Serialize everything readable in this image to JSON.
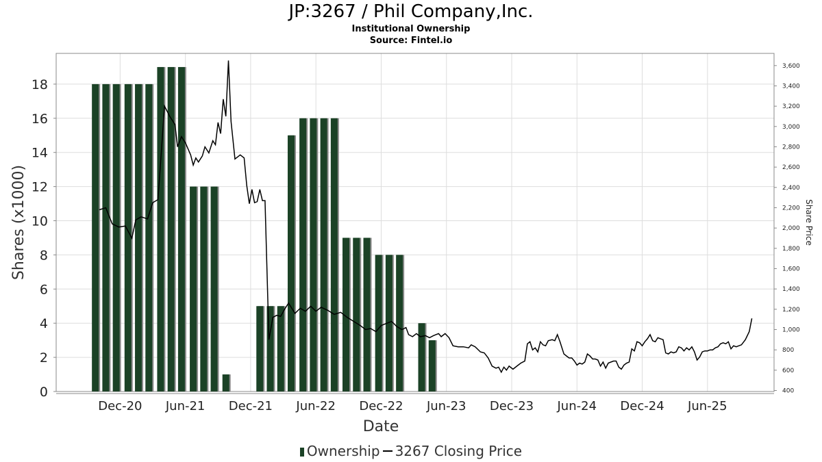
{
  "header": {
    "title": "JP:3267 / Phil Company,Inc.",
    "subtitle": "Institutional Ownership",
    "source": "Source: Fintel.io"
  },
  "legend": {
    "ownership": "Ownership",
    "price": "3267 Closing Price"
  },
  "colors": {
    "bar": "#1b4226",
    "bar_shadow": "#8a8a8a",
    "line": "#000000",
    "grid": "#dddddd",
    "frame": "#888888"
  },
  "chart_data": {
    "type": "bar",
    "title": "JP:3267 / Phil Company,Inc.",
    "subtitle": "Institutional Ownership",
    "xlabel": "Date",
    "ylabel": "Shares (x1000)",
    "y2label": "Share Price",
    "x_ticks": [
      "Dec-20",
      "Jun-21",
      "Dec-21",
      "Jun-22",
      "Dec-22",
      "Jun-23",
      "Dec-23",
      "Jun-24",
      "Dec-24",
      "Jun-25"
    ],
    "x_range": [
      2020.47,
      2025.97
    ],
    "ylim": [
      0,
      19.8
    ],
    "y_ticks": [
      0,
      2,
      4,
      6,
      8,
      10,
      12,
      14,
      16,
      18
    ],
    "y2lim": [
      390,
      3720
    ],
    "y2_ticks": [
      400,
      600,
      800,
      1000,
      1200,
      1400,
      1600,
      1800,
      2000,
      2200,
      2400,
      2600,
      2800,
      3000,
      3200,
      3400,
      3600
    ],
    "grid": true,
    "legend_position": "bottom",
    "series": [
      {
        "name": "Ownership",
        "kind": "bar",
        "axis": "left",
        "points": [
          {
            "x": 2020.77,
            "y": 18
          },
          {
            "x": 2020.85,
            "y": 18
          },
          {
            "x": 2020.93,
            "y": 18
          },
          {
            "x": 2021.02,
            "y": 18
          },
          {
            "x": 2021.1,
            "y": 18
          },
          {
            "x": 2021.18,
            "y": 18
          },
          {
            "x": 2021.27,
            "y": 19
          },
          {
            "x": 2021.35,
            "y": 19
          },
          {
            "x": 2021.43,
            "y": 19
          },
          {
            "x": 2021.52,
            "y": 12
          },
          {
            "x": 2021.6,
            "y": 12
          },
          {
            "x": 2021.68,
            "y": 12
          },
          {
            "x": 2021.77,
            "y": 1
          },
          {
            "x": 2022.03,
            "y": 5
          },
          {
            "x": 2022.11,
            "y": 5
          },
          {
            "x": 2022.19,
            "y": 5
          },
          {
            "x": 2022.27,
            "y": 15
          },
          {
            "x": 2022.36,
            "y": 16
          },
          {
            "x": 2022.44,
            "y": 16
          },
          {
            "x": 2022.52,
            "y": 16
          },
          {
            "x": 2022.6,
            "y": 16
          },
          {
            "x": 2022.69,
            "y": 9
          },
          {
            "x": 2022.77,
            "y": 9
          },
          {
            "x": 2022.85,
            "y": 9
          },
          {
            "x": 2022.94,
            "y": 8
          },
          {
            "x": 2023.02,
            "y": 8
          },
          {
            "x": 2023.1,
            "y": 8
          },
          {
            "x": 2023.27,
            "y": 4
          },
          {
            "x": 2023.35,
            "y": 3
          }
        ]
      },
      {
        "name": "3267 Closing Price",
        "kind": "line",
        "axis": "right",
        "points": [
          {
            "x": 2020.8,
            "y": 2180
          },
          {
            "x": 2020.85,
            "y": 2200
          },
          {
            "x": 2020.9,
            "y": 2040
          },
          {
            "x": 2020.95,
            "y": 2010
          },
          {
            "x": 2021.0,
            "y": 2020
          },
          {
            "x": 2021.05,
            "y": 1900
          },
          {
            "x": 2021.08,
            "y": 2080
          },
          {
            "x": 2021.12,
            "y": 2110
          },
          {
            "x": 2021.17,
            "y": 2090
          },
          {
            "x": 2021.21,
            "y": 2250
          },
          {
            "x": 2021.25,
            "y": 2280
          },
          {
            "x": 2021.3,
            "y": 3200
          },
          {
            "x": 2021.34,
            "y": 3100
          },
          {
            "x": 2021.38,
            "y": 3020
          },
          {
            "x": 2021.4,
            "y": 2800
          },
          {
            "x": 2021.43,
            "y": 2900
          },
          {
            "x": 2021.46,
            "y": 2840
          },
          {
            "x": 2021.5,
            "y": 2720
          },
          {
            "x": 2021.52,
            "y": 2620
          },
          {
            "x": 2021.54,
            "y": 2690
          },
          {
            "x": 2021.56,
            "y": 2650
          },
          {
            "x": 2021.59,
            "y": 2710
          },
          {
            "x": 2021.61,
            "y": 2800
          },
          {
            "x": 2021.64,
            "y": 2740
          },
          {
            "x": 2021.67,
            "y": 2860
          },
          {
            "x": 2021.69,
            "y": 2820
          },
          {
            "x": 2021.71,
            "y": 3040
          },
          {
            "x": 2021.73,
            "y": 2930
          },
          {
            "x": 2021.75,
            "y": 3270
          },
          {
            "x": 2021.77,
            "y": 3100
          },
          {
            "x": 2021.79,
            "y": 3650
          },
          {
            "x": 2021.81,
            "y": 3050
          },
          {
            "x": 2021.84,
            "y": 2680
          },
          {
            "x": 2021.88,
            "y": 2720
          },
          {
            "x": 2021.91,
            "y": 2690
          },
          {
            "x": 2021.93,
            "y": 2420
          },
          {
            "x": 2021.95,
            "y": 2240
          },
          {
            "x": 2021.97,
            "y": 2380
          },
          {
            "x": 2021.99,
            "y": 2250
          },
          {
            "x": 2022.01,
            "y": 2260
          },
          {
            "x": 2022.03,
            "y": 2380
          },
          {
            "x": 2022.05,
            "y": 2270
          },
          {
            "x": 2022.07,
            "y": 2270
          },
          {
            "x": 2022.1,
            "y": 900
          },
          {
            "x": 2022.13,
            "y": 1120
          },
          {
            "x": 2022.16,
            "y": 1140
          },
          {
            "x": 2022.19,
            "y": 1130
          },
          {
            "x": 2022.22,
            "y": 1200
          },
          {
            "x": 2022.25,
            "y": 1260
          },
          {
            "x": 2022.3,
            "y": 1160
          },
          {
            "x": 2022.34,
            "y": 1210
          },
          {
            "x": 2022.38,
            "y": 1180
          },
          {
            "x": 2022.42,
            "y": 1230
          },
          {
            "x": 2022.46,
            "y": 1180
          },
          {
            "x": 2022.5,
            "y": 1220
          },
          {
            "x": 2022.55,
            "y": 1190
          },
          {
            "x": 2022.6,
            "y": 1150
          },
          {
            "x": 2022.65,
            "y": 1170
          },
          {
            "x": 2022.7,
            "y": 1120
          },
          {
            "x": 2022.75,
            "y": 1080
          },
          {
            "x": 2022.8,
            "y": 1040
          },
          {
            "x": 2022.84,
            "y": 1000
          },
          {
            "x": 2022.88,
            "y": 1010
          },
          {
            "x": 2022.92,
            "y": 980
          },
          {
            "x": 2022.96,
            "y": 1040
          },
          {
            "x": 2023.0,
            "y": 1060
          },
          {
            "x": 2023.04,
            "y": 1080
          },
          {
            "x": 2023.08,
            "y": 1030
          },
          {
            "x": 2023.12,
            "y": 1000
          },
          {
            "x": 2023.15,
            "y": 1020
          },
          {
            "x": 2023.17,
            "y": 950
          },
          {
            "x": 2023.2,
            "y": 930
          },
          {
            "x": 2023.23,
            "y": 960
          },
          {
            "x": 2023.26,
            "y": 930
          },
          {
            "x": 2023.3,
            "y": 940
          },
          {
            "x": 2023.33,
            "y": 920
          },
          {
            "x": 2023.36,
            "y": 940
          },
          {
            "x": 2023.4,
            "y": 960
          },
          {
            "x": 2023.42,
            "y": 930
          },
          {
            "x": 2023.45,
            "y": 960
          },
          {
            "x": 2023.48,
            "y": 920
          },
          {
            "x": 2023.51,
            "y": 840
          },
          {
            "x": 2023.55,
            "y": 830
          },
          {
            "x": 2023.59,
            "y": 830
          },
          {
            "x": 2023.63,
            "y": 820
          },
          {
            "x": 2023.65,
            "y": 850
          },
          {
            "x": 2023.68,
            "y": 830
          },
          {
            "x": 2023.72,
            "y": 780
          },
          {
            "x": 2023.75,
            "y": 770
          },
          {
            "x": 2023.78,
            "y": 720
          },
          {
            "x": 2023.81,
            "y": 640
          },
          {
            "x": 2023.84,
            "y": 620
          },
          {
            "x": 2023.86,
            "y": 630
          },
          {
            "x": 2023.88,
            "y": 580
          },
          {
            "x": 2023.9,
            "y": 630
          },
          {
            "x": 2023.92,
            "y": 600
          },
          {
            "x": 2023.94,
            "y": 640
          },
          {
            "x": 2023.97,
            "y": 610
          },
          {
            "x": 2024.0,
            "y": 640
          },
          {
            "x": 2024.03,
            "y": 670
          },
          {
            "x": 2024.06,
            "y": 690
          },
          {
            "x": 2024.08,
            "y": 860
          },
          {
            "x": 2024.1,
            "y": 880
          },
          {
            "x": 2024.12,
            "y": 800
          },
          {
            "x": 2024.14,
            "y": 820
          },
          {
            "x": 2024.16,
            "y": 780
          },
          {
            "x": 2024.18,
            "y": 880
          },
          {
            "x": 2024.2,
            "y": 850
          },
          {
            "x": 2024.22,
            "y": 840
          },
          {
            "x": 2024.24,
            "y": 890
          },
          {
            "x": 2024.27,
            "y": 900
          },
          {
            "x": 2024.29,
            "y": 890
          },
          {
            "x": 2024.31,
            "y": 950
          },
          {
            "x": 2024.33,
            "y": 880
          },
          {
            "x": 2024.36,
            "y": 760
          },
          {
            "x": 2024.38,
            "y": 740
          },
          {
            "x": 2024.4,
            "y": 720
          },
          {
            "x": 2024.42,
            "y": 720
          },
          {
            "x": 2024.44,
            "y": 690
          },
          {
            "x": 2024.46,
            "y": 650
          },
          {
            "x": 2024.48,
            "y": 670
          },
          {
            "x": 2024.5,
            "y": 660
          },
          {
            "x": 2024.52,
            "y": 680
          },
          {
            "x": 2024.54,
            "y": 760
          },
          {
            "x": 2024.56,
            "y": 740
          },
          {
            "x": 2024.58,
            "y": 710
          },
          {
            "x": 2024.6,
            "y": 710
          },
          {
            "x": 2024.62,
            "y": 700
          },
          {
            "x": 2024.64,
            "y": 640
          },
          {
            "x": 2024.66,
            "y": 680
          },
          {
            "x": 2024.68,
            "y": 620
          },
          {
            "x": 2024.7,
            "y": 670
          },
          {
            "x": 2024.72,
            "y": 680
          },
          {
            "x": 2024.74,
            "y": 690
          },
          {
            "x": 2024.76,
            "y": 690
          },
          {
            "x": 2024.78,
            "y": 630
          },
          {
            "x": 2024.8,
            "y": 610
          },
          {
            "x": 2024.82,
            "y": 650
          },
          {
            "x": 2024.84,
            "y": 670
          },
          {
            "x": 2024.86,
            "y": 680
          },
          {
            "x": 2024.88,
            "y": 810
          },
          {
            "x": 2024.9,
            "y": 790
          },
          {
            "x": 2024.92,
            "y": 880
          },
          {
            "x": 2024.94,
            "y": 870
          },
          {
            "x": 2024.96,
            "y": 840
          },
          {
            "x": 2024.98,
            "y": 880
          },
          {
            "x": 2025.0,
            "y": 910
          },
          {
            "x": 2025.02,
            "y": 950
          },
          {
            "x": 2025.04,
            "y": 890
          },
          {
            "x": 2025.06,
            "y": 880
          },
          {
            "x": 2025.08,
            "y": 920
          },
          {
            "x": 2025.1,
            "y": 910
          },
          {
            "x": 2025.12,
            "y": 900
          },
          {
            "x": 2025.14,
            "y": 770
          },
          {
            "x": 2025.16,
            "y": 760
          },
          {
            "x": 2025.18,
            "y": 780
          },
          {
            "x": 2025.2,
            "y": 770
          },
          {
            "x": 2025.22,
            "y": 780
          },
          {
            "x": 2025.24,
            "y": 830
          },
          {
            "x": 2025.26,
            "y": 820
          },
          {
            "x": 2025.28,
            "y": 790
          },
          {
            "x": 2025.3,
            "y": 820
          },
          {
            "x": 2025.32,
            "y": 800
          },
          {
            "x": 2025.34,
            "y": 830
          },
          {
            "x": 2025.36,
            "y": 780
          },
          {
            "x": 2025.38,
            "y": 700
          },
          {
            "x": 2025.4,
            "y": 730
          },
          {
            "x": 2025.42,
            "y": 780
          },
          {
            "x": 2025.44,
            "y": 790
          },
          {
            "x": 2025.46,
            "y": 790
          },
          {
            "x": 2025.48,
            "y": 800
          },
          {
            "x": 2025.5,
            "y": 800
          },
          {
            "x": 2025.52,
            "y": 820
          },
          {
            "x": 2025.54,
            "y": 830
          },
          {
            "x": 2025.56,
            "y": 860
          },
          {
            "x": 2025.58,
            "y": 870
          },
          {
            "x": 2025.6,
            "y": 860
          },
          {
            "x": 2025.62,
            "y": 880
          },
          {
            "x": 2025.64,
            "y": 810
          },
          {
            "x": 2025.66,
            "y": 840
          },
          {
            "x": 2025.68,
            "y": 830
          },
          {
            "x": 2025.7,
            "y": 840
          },
          {
            "x": 2025.72,
            "y": 850
          },
          {
            "x": 2025.75,
            "y": 900
          },
          {
            "x": 2025.78,
            "y": 980
          },
          {
            "x": 2025.8,
            "y": 1110
          }
        ]
      }
    ]
  }
}
